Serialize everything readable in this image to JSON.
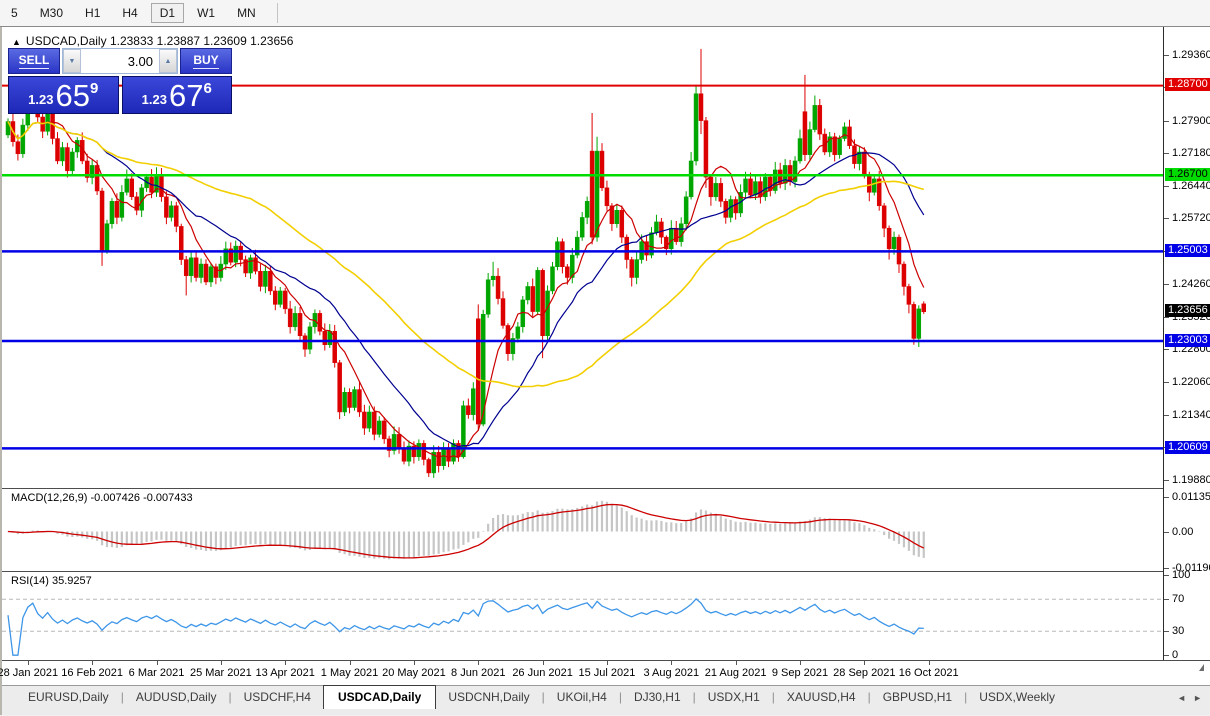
{
  "toolbar": {
    "timeframes": [
      "5",
      "M30",
      "H1",
      "H4",
      "D1",
      "W1",
      "MN"
    ],
    "active": "D1"
  },
  "chart_title": {
    "collapse_icon": "▲",
    "symbol": "USDCAD,Daily",
    "ohlc_text": "1.23833 1.23887 1.23609 1.23656"
  },
  "trade_panel": {
    "sell_label": "SELL",
    "buy_label": "BUY",
    "volume": "3.00",
    "spin_down_icon": "▼",
    "spin_up_icon": "▲",
    "sell_price": {
      "prefix": "1.23",
      "big": "65",
      "sup": "9"
    },
    "buy_price": {
      "prefix": "1.23",
      "big": "67",
      "sup": "6"
    }
  },
  "chart_data": {
    "type": "candlestick",
    "symbol": "USDCAD",
    "timeframe": "Daily",
    "last_bar": {
      "open": 1.23833,
      "high": 1.23887,
      "low": 1.23609,
      "close": 1.23656
    },
    "ylim": [
      1.19724,
      1.29986
    ],
    "colors": {
      "up": "#00a600",
      "down": "#dd0000",
      "ma_fast": "#cc0000",
      "ma_mid": "#000090",
      "ma_slow": "#f2cf00"
    },
    "price_ticks": [
      {
        "label": "1.29360",
        "value": 1.2936
      },
      {
        "label": "1.28640",
        "value": 1.2864
      },
      {
        "label": "1.27900",
        "value": 1.279
      },
      {
        "label": "1.27180",
        "value": 1.2718
      },
      {
        "label": "1.26440",
        "value": 1.2644
      },
      {
        "label": "1.25720",
        "value": 1.2572
      },
      {
        "label": "1.25000",
        "value": 1.25
      },
      {
        "label": "1.24260",
        "value": 1.2426
      },
      {
        "label": "1.23520",
        "value": 1.2352
      },
      {
        "label": "1.22800",
        "value": 1.228
      },
      {
        "label": "1.22060",
        "value": 1.2206
      },
      {
        "label": "1.21340",
        "value": 1.2134
      },
      {
        "label": "1.20610",
        "value": 1.2061
      },
      {
        "label": "1.19880",
        "value": 1.1988
      }
    ],
    "date_ticks": {
      "labels": [
        "28 Jan 2021",
        "16 Feb 2021",
        "6 Mar 2021",
        "25 Mar 2021",
        "13 Apr 2021",
        "1 May 2021",
        "20 May 2021",
        "8 Jun 2021",
        "26 Jun 2021",
        "15 Jul 2021",
        "3 Aug 2021",
        "21 Aug 2021",
        "9 Sep 2021",
        "28 Sep 2021",
        "16 Oct 2021"
      ],
      "bar_indices": [
        4,
        17,
        30,
        43,
        56,
        69,
        82,
        95,
        108,
        121,
        134,
        147,
        160,
        173,
        186
      ]
    },
    "hlines": [
      {
        "label": "1.28700",
        "price": 1.287,
        "color": "#e00000",
        "text_color": "#ffffff",
        "width": 2
      },
      {
        "label": "1.26700",
        "price": 1.267,
        "color": "#00dc00",
        "text_color": "#000000",
        "width": 2.5
      },
      {
        "label": "1.25003",
        "price": 1.25003,
        "color": "#0000e6",
        "text_color": "#ffffff",
        "width": 2.5
      },
      {
        "label": "1.23003",
        "price": 1.23003,
        "color": "#0000e6",
        "text_color": "#ffffff",
        "width": 2.5
      },
      {
        "label": "1.20609",
        "price": 1.20609,
        "color": "#0000e6",
        "text_color": "#ffffff",
        "width": 2.5
      }
    ],
    "current_price": {
      "label": "1.23656",
      "value": 1.23656,
      "bg": "#000000",
      "text_color": "#ffffff"
    },
    "moving_averages": [
      {
        "name": "fast",
        "period": 8,
        "color": "#cc0000",
        "width": 1.2
      },
      {
        "name": "medium",
        "period": 20,
        "color": "#000090",
        "width": 1.2
      },
      {
        "name": "slow",
        "period": 50,
        "color": "#f2cf00",
        "width": 1.6
      }
    ],
    "candles": [
      [
        1.276,
        1.279
      ],
      [
        1.279,
        1.2745
      ],
      [
        1.2745,
        1.2718
      ],
      [
        1.2718,
        1.2782
      ],
      [
        1.2782,
        1.2826
      ],
      [
        1.2826,
        1.2852,
        1.2882,
        1.2818
      ],
      [
        1.2852,
        1.28
      ],
      [
        1.28,
        1.2768
      ],
      [
        1.2768,
        1.2812
      ],
      [
        1.2812,
        1.2752
      ],
      [
        1.2752,
        1.2702
      ],
      [
        1.2702,
        1.2732
      ],
      [
        1.2732,
        1.268
      ],
      [
        1.268,
        1.2722
      ],
      [
        1.2722,
        1.2748
      ],
      [
        1.2748,
        1.2702
      ],
      [
        1.2702,
        1.2665
      ],
      [
        1.2665,
        1.2692
      ],
      [
        1.2692,
        1.2635
      ],
      [
        1.2635,
        1.2502,
        1.2642,
        1.2468
      ],
      [
        1.2502,
        1.2562
      ],
      [
        1.2562,
        1.2612
      ],
      [
        1.2612,
        1.2576
      ],
      [
        1.2576,
        1.2632
      ],
      [
        1.2632,
        1.2662,
        1.2683,
        1.2625
      ],
      [
        1.2662,
        1.2622
      ],
      [
        1.2622,
        1.2592
      ],
      [
        1.2592,
        1.2642
      ],
      [
        1.2642,
        1.2666
      ],
      [
        1.2666,
        1.2632
      ],
      [
        1.2632,
        1.2672,
        1.2688,
        1.2622
      ],
      [
        1.2672,
        1.2622
      ],
      [
        1.2622,
        1.2576
      ],
      [
        1.2576,
        1.2602
      ],
      [
        1.2602,
        1.2556
      ],
      [
        1.2556,
        1.2482,
        1.2562,
        1.247
      ],
      [
        1.2482,
        1.2446,
        1.249,
        1.2402
      ],
      [
        1.2446,
        1.2486
      ],
      [
        1.2486,
        1.2442
      ],
      [
        1.2442,
        1.2472
      ],
      [
        1.2472,
        1.2432
      ],
      [
        1.2432,
        1.2466
      ],
      [
        1.2466,
        1.2442
      ],
      [
        1.2442,
        1.2472
      ],
      [
        1.2472,
        1.2506
      ],
      [
        1.2506,
        1.2476
      ],
      [
        1.2476,
        1.2512
      ],
      [
        1.2512,
        1.2482
      ],
      [
        1.2482,
        1.2452
      ],
      [
        1.2452,
        1.2486
      ],
      [
        1.2486,
        1.2456
      ],
      [
        1.2456,
        1.2422
      ],
      [
        1.2422,
        1.2456
      ],
      [
        1.2456,
        1.2412
      ],
      [
        1.2412,
        1.2382
      ],
      [
        1.2382,
        1.2412
      ],
      [
        1.2412,
        1.2372
      ],
      [
        1.2372,
        1.2332
      ],
      [
        1.2332,
        1.2362
      ],
      [
        1.2362,
        1.2312
      ],
      [
        1.2312,
        1.2282,
        1.2318,
        1.2265
      ],
      [
        1.2282,
        1.2332
      ],
      [
        1.2332,
        1.2362
      ],
      [
        1.2362,
        1.2322
      ],
      [
        1.2322,
        1.2292
      ],
      [
        1.2292,
        1.2322
      ],
      [
        1.2322,
        1.2252
      ],
      [
        1.2252,
        1.2142,
        1.2258,
        1.2126
      ],
      [
        1.2142,
        1.2186
      ],
      [
        1.2186,
        1.2152
      ],
      [
        1.2152,
        1.2192
      ],
      [
        1.2192,
        1.2142
      ],
      [
        1.2142,
        1.2106
      ],
      [
        1.2106,
        1.2142
      ],
      [
        1.2142,
        1.2092
      ],
      [
        1.2092,
        1.2122
      ],
      [
        1.2122,
        1.2082
      ],
      [
        1.2082,
        1.2056
      ],
      [
        1.2056,
        1.2092
      ],
      [
        1.2092,
        1.2062
      ],
      [
        1.2062,
        1.2032
      ],
      [
        1.2032,
        1.2066
      ],
      [
        1.2066,
        1.2042
      ],
      [
        1.2042,
        1.2072
      ],
      [
        1.2072,
        1.2036
      ],
      [
        1.2036,
        1.2006,
        1.204,
        1.1997
      ],
      [
        1.2006,
        1.2052
      ],
      [
        1.2052,
        1.2022
      ],
      [
        1.2022,
        1.2062
      ],
      [
        1.2062,
        1.2032
      ],
      [
        1.2032,
        1.2072
      ],
      [
        1.2072,
        1.2042
      ],
      [
        1.2042,
        1.2156,
        1.2167,
        1.2038
      ],
      [
        1.2156,
        1.2136
      ],
      [
        1.2136,
        1.2194
      ],
      [
        1.235,
        1.2115,
        1.2382,
        1.21
      ],
      [
        1.2115,
        1.236,
        1.237,
        1.211
      ],
      [
        1.236,
        1.2437,
        1.2452,
        1.2352
      ],
      [
        1.2437,
        1.2445,
        1.2477,
        1.2422
      ],
      [
        1.2445,
        1.2395
      ],
      [
        1.2395,
        1.2335
      ],
      [
        1.2335,
        1.2272,
        1.234,
        1.2256
      ],
      [
        1.2272,
        1.2306
      ],
      [
        1.2306,
        1.2332
      ],
      [
        1.2332,
        1.2392
      ],
      [
        1.2392,
        1.2422,
        1.2432,
        1.2382
      ],
      [
        1.2422,
        1.2366
      ],
      [
        1.2366,
        1.2458,
        1.2465,
        1.2358
      ],
      [
        1.2458,
        1.2312,
        1.2462,
        1.2262
      ],
      [
        1.2312,
        1.2412
      ],
      [
        1.2412,
        1.2466
      ],
      [
        1.2466,
        1.2522,
        1.2532,
        1.2458
      ],
      [
        1.2522,
        1.2466
      ],
      [
        1.2466,
        1.2442,
        1.2472,
        1.2426
      ],
      [
        1.2442,
        1.2492
      ],
      [
        1.2492,
        1.2532
      ],
      [
        1.2532,
        1.2576,
        1.2588,
        1.2524
      ],
      [
        1.2576,
        1.2612
      ],
      [
        1.2724,
        1.2532,
        1.2809,
        1.2516
      ],
      [
        1.2532,
        1.2724,
        1.2756,
        1.2522
      ],
      [
        1.2724,
        1.2642
      ],
      [
        1.2642,
        1.2602
      ],
      [
        1.2602,
        1.2562,
        1.2608,
        1.2546
      ],
      [
        1.2562,
        1.2592
      ],
      [
        1.2592,
        1.2532
      ],
      [
        1.2532,
        1.2482,
        1.2538,
        1.2462
      ],
      [
        1.2482,
        1.2442,
        1.2488,
        1.2422
      ],
      [
        1.2442,
        1.2482
      ],
      [
        1.2482,
        1.2522
      ],
      [
        1.2522,
        1.2492
      ],
      [
        1.2492,
        1.2542
      ],
      [
        1.2542,
        1.2566,
        1.2582,
        1.2536
      ],
      [
        1.2566,
        1.2532
      ],
      [
        1.2532,
        1.2506,
        1.2536,
        1.2492
      ],
      [
        1.2506,
        1.2552
      ],
      [
        1.2552,
        1.2522
      ],
      [
        1.2522,
        1.2562
      ],
      [
        1.2562,
        1.2622
      ],
      [
        1.2622,
        1.2702,
        1.2722,
        1.2616
      ],
      [
        1.2702,
        1.2852,
        1.2872,
        1.2692
      ],
      [
        1.2852,
        1.2792,
        1.2952,
        1.2762
      ],
      [
        1.2792,
        1.2666,
        1.28,
        1.2642
      ],
      [
        1.2666,
        1.2622,
        1.2672,
        1.2602
      ],
      [
        1.2622,
        1.2652
      ],
      [
        1.2652,
        1.2612
      ],
      [
        1.2612,
        1.2576,
        1.2618,
        1.2562
      ],
      [
        1.2576,
        1.2616
      ],
      [
        1.2616,
        1.2586
      ],
      [
        1.2586,
        1.2632
      ],
      [
        1.2632,
        1.2662
      ],
      [
        1.2662,
        1.2626
      ],
      [
        1.2626,
        1.2656
      ],
      [
        1.2656,
        1.2622
      ],
      [
        1.2622,
        1.2666
      ],
      [
        1.2666,
        1.2636
      ],
      [
        1.2636,
        1.2682
      ],
      [
        1.2682,
        1.2652
      ],
      [
        1.2652,
        1.2692
      ],
      [
        1.2692,
        1.2656
      ],
      [
        1.2656,
        1.2702
      ],
      [
        1.2702,
        1.2752,
        1.2772,
        1.2696
      ],
      [
        1.2812,
        1.2716,
        1.2894,
        1.2702
      ],
      [
        1.2716,
        1.2772
      ],
      [
        1.2772,
        1.2826,
        1.2848,
        1.2766
      ],
      [
        1.2826,
        1.2762
      ],
      [
        1.2762,
        1.2722
      ],
      [
        1.2722,
        1.2756
      ],
      [
        1.2756,
        1.2716
      ],
      [
        1.2716,
        1.2752
      ],
      [
        1.2752,
        1.2778,
        1.2788,
        1.2746
      ],
      [
        1.2778,
        1.2736
      ],
      [
        1.2736,
        1.2696
      ],
      [
        1.2696,
        1.2722
      ],
      [
        1.2722,
        1.2672
      ],
      [
        1.2672,
        1.2632,
        1.2678,
        1.2612
      ],
      [
        1.2632,
        1.2662
      ],
      [
        1.2662,
        1.2602
      ],
      [
        1.2602,
        1.2552,
        1.2608,
        1.2532
      ],
      [
        1.2552,
        1.2506,
        1.2558,
        1.2482
      ],
      [
        1.2506,
        1.2532
      ],
      [
        1.2532,
        1.2472,
        1.2538,
        1.2452
      ],
      [
        1.2472,
        1.2422,
        1.2478,
        1.2402
      ],
      [
        1.2422,
        1.2382,
        1.2428,
        1.2362
      ],
      [
        1.2382,
        1.2306,
        1.2388,
        1.2292
      ],
      [
        1.2306,
        1.2372,
        1.238,
        1.2287
      ],
      [
        1.23833,
        1.23656,
        1.23887,
        1.23609
      ]
    ],
    "indicators": [
      {
        "name": "MACD",
        "label": "MACD(12,26,9) -0.007426 -0.007433",
        "params": [
          12,
          26,
          9
        ],
        "values": [
          -0.007426,
          -0.007433
        ],
        "axis": [
          {
            "label": "0.01135",
            "value": 0.01135
          },
          {
            "label": "0.00",
            "value": 0.0
          },
          {
            "label": "-0.011904",
            "value": -0.011904
          }
        ],
        "range": [
          0.0138,
          -0.0128
        ],
        "histogram_color": "#c6c6c6",
        "signal_color": "#cc0000"
      },
      {
        "name": "RSI",
        "label": "RSI(14) 35.9257",
        "params": [
          14
        ],
        "value": 35.9257,
        "axis": [
          {
            "label": "100",
            "value": 100
          },
          {
            "label": "70",
            "value": 70
          },
          {
            "label": "30",
            "value": 30
          },
          {
            "label": "0",
            "value": 0
          }
        ],
        "levels": [
          70,
          30
        ],
        "range": [
          104,
          -6
        ],
        "line_color": "#3e96e8",
        "level_color": "#b8b8b8"
      }
    ]
  },
  "tab_bar": {
    "tabs": [
      "EURUSD,Daily",
      "AUDUSD,Daily",
      "USDCHF,H4",
      "USDCAD,Daily",
      "USDCNH,Daily",
      "UKOil,H4",
      "DJ30,H1",
      "USDX,H1",
      "XAUUSD,H4",
      "GBPUSD,H1",
      "USDX,Weekly"
    ],
    "active": "USDCAD,Daily",
    "scroll_left_icon": "◄",
    "scroll_right_icon": "►"
  }
}
